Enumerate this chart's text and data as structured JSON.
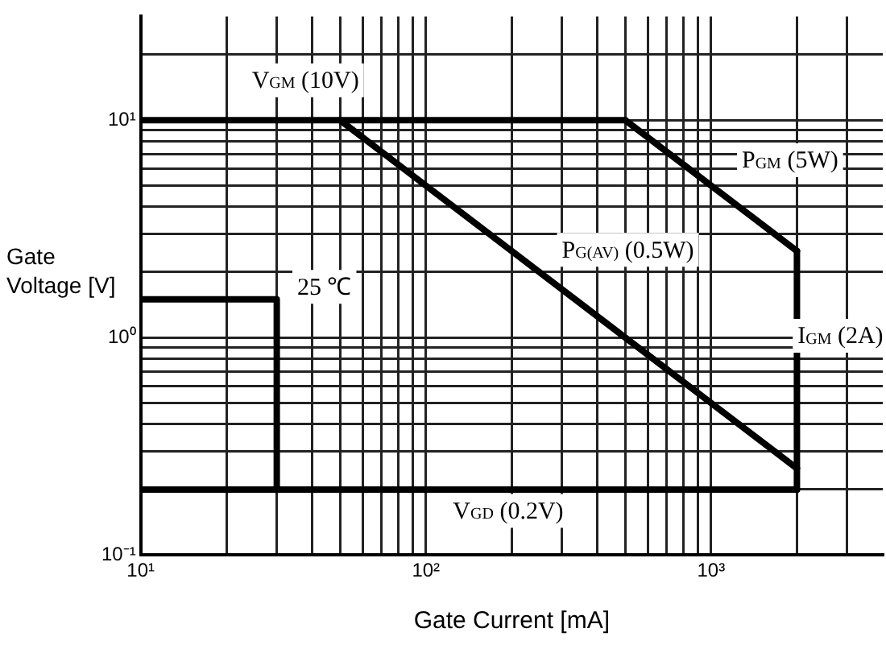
{
  "chart_data": {
    "type": "line",
    "xlabel": "Gate Current [mA]",
    "ylabel": "Gate Voltage [V]",
    "log": "xy",
    "grid": true,
    "marker": "none",
    "line_style": "solid",
    "xlim": [
      10,
      4000
    ],
    "ylim": [
      0.1,
      30
    ],
    "xticks": [
      {
        "value": 10,
        "label": "10¹"
      },
      {
        "value": 20,
        "label": null
      },
      {
        "value": 30,
        "label": null
      },
      {
        "value": 40,
        "label": null
      },
      {
        "value": 50,
        "label": null
      },
      {
        "value": 60,
        "label": null
      },
      {
        "value": 70,
        "label": null
      },
      {
        "value": 80,
        "label": null
      },
      {
        "value": 90,
        "label": null
      },
      {
        "value": 100,
        "label": "10²"
      },
      {
        "value": 200,
        "label": null
      },
      {
        "value": 300,
        "label": null
      },
      {
        "value": 400,
        "label": null
      },
      {
        "value": 500,
        "label": null
      },
      {
        "value": 600,
        "label": null
      },
      {
        "value": 700,
        "label": null
      },
      {
        "value": 800,
        "label": null
      },
      {
        "value": 900,
        "label": null
      },
      {
        "value": 1000,
        "label": "10³"
      },
      {
        "value": 2000,
        "label": null
      },
      {
        "value": 3000,
        "label": null
      }
    ],
    "yticks": [
      {
        "value": 0.1,
        "label": "10⁻¹"
      },
      {
        "value": 0.2,
        "label": null
      },
      {
        "value": 0.3,
        "label": null
      },
      {
        "value": 0.4,
        "label": null
      },
      {
        "value": 0.5,
        "label": null
      },
      {
        "value": 0.6,
        "label": null
      },
      {
        "value": 0.7,
        "label": null
      },
      {
        "value": 0.8,
        "label": null
      },
      {
        "value": 0.9,
        "label": null
      },
      {
        "value": 1,
        "label": "10⁰"
      },
      {
        "value": 2,
        "label": null
      },
      {
        "value": 3,
        "label": null
      },
      {
        "value": 4,
        "label": null
      },
      {
        "value": 5,
        "label": null
      },
      {
        "value": 6,
        "label": null
      },
      {
        "value": 7,
        "label": null
      },
      {
        "value": 8,
        "label": null
      },
      {
        "value": 9,
        "label": null
      },
      {
        "value": 10,
        "label": "10¹"
      },
      {
        "value": 20,
        "label": null
      }
    ],
    "series": [
      {
        "name": "V$_{GM}$ (10V)",
        "color": "#000000",
        "x": [
          10,
          500
        ],
        "values": [
          10,
          10
        ]
      },
      {
        "name": "P$_{GM}$ (5W)",
        "color": "#000000",
        "x": [
          500,
          1000,
          2000
        ],
        "values": [
          10,
          5,
          2.5
        ]
      },
      {
        "name": "I$_{GM}$ (2A)",
        "color": "#000000",
        "x": [
          2000,
          2000
        ],
        "values": [
          2.5,
          0.2
        ]
      },
      {
        "name": "P$_{G(AV)}$ (0.5W)",
        "color": "#000000",
        "x": [
          50,
          2000
        ],
        "values": [
          10,
          0.25
        ]
      },
      {
        "name": "V$_{GD}$ (0.2V)",
        "color": "#000000",
        "x": [
          10,
          2000
        ],
        "values": [
          0.2,
          0.2
        ]
      },
      {
        "name": "25 ℃",
        "color": "#000000",
        "x": [
          10,
          30,
          30
        ],
        "values": [
          1.5,
          1.5,
          0.2
        ]
      }
    ]
  }
}
